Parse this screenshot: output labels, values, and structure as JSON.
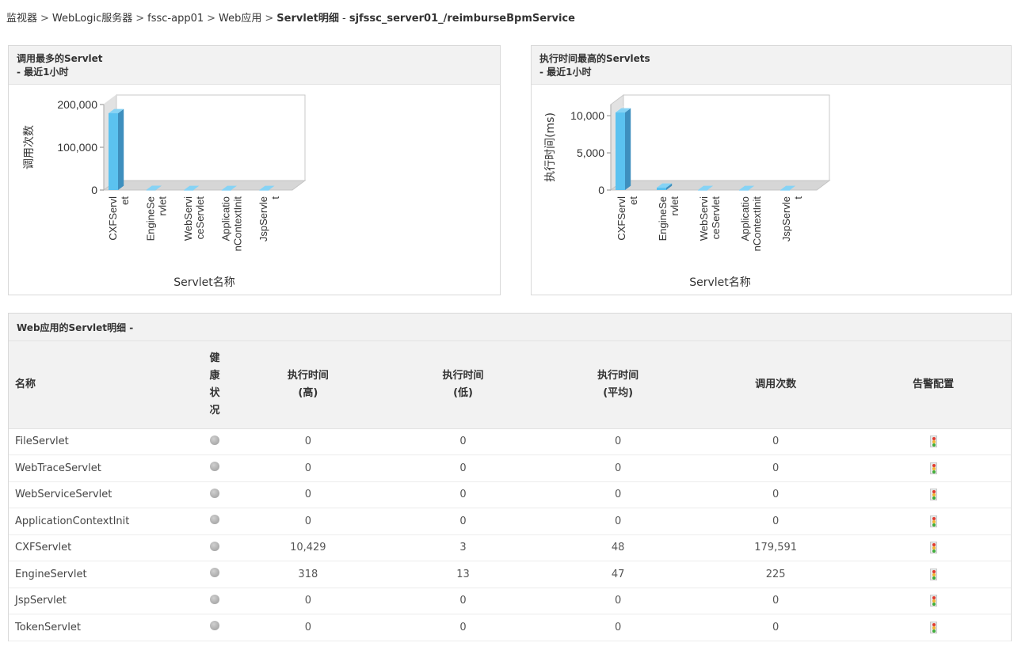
{
  "breadcrumb": {
    "items": [
      "监视器",
      "WebLogic服务器",
      "fssc-app01",
      "Web应用"
    ],
    "current_prefix": "Servlet明细",
    "current_sep": " - ",
    "current_name": "sjfssc_server01_/reimburseBpmService",
    "separator": ">"
  },
  "chart_left": {
    "header_title": "调用最多的Servlet",
    "header_sub": "- 最近1小时",
    "chart_data": {
      "type": "bar",
      "title": "调用最多的Servlet",
      "xlabel": "Servlet名称",
      "ylabel": "调用次数",
      "ylim": [
        0,
        200000
      ],
      "yticks": [
        "0",
        "100,000",
        "200,000"
      ],
      "categories": [
        "CXFServlet",
        "EngineServlet",
        "WebServiceServlet",
        "ApplicationContextInit",
        "JspServlet"
      ],
      "category_lines": [
        [
          "CXFServl",
          "et"
        ],
        [
          "EngineSe",
          "rvlet"
        ],
        [
          "WebServi",
          "ceServlet"
        ],
        [
          "Applicatio",
          "nContextInit"
        ],
        [
          "JspServle",
          "t"
        ]
      ],
      "values": [
        179591,
        225,
        0,
        0,
        0
      ],
      "color": "#5bc2f0"
    }
  },
  "chart_right": {
    "header_title": "执行时间最高的Servlets",
    "header_sub": "- 最近1小时",
    "chart_data": {
      "type": "bar",
      "title": "执行时间最高的Servlets",
      "xlabel": "Servlet名称",
      "ylabel": "执行时间(ms)",
      "ylim": [
        0,
        11500
      ],
      "yticks": [
        "0",
        "5,000",
        "10,000"
      ],
      "categories": [
        "CXFServlet",
        "EngineServlet",
        "WebServiceServlet",
        "ApplicationContextInit",
        "JspServlet"
      ],
      "category_lines": [
        [
          "CXFServl",
          "et"
        ],
        [
          "EngineSe",
          "rvlet"
        ],
        [
          "WebServi",
          "ceServlet"
        ],
        [
          "Applicatio",
          "nContextInit"
        ],
        [
          "JspServle",
          "t"
        ]
      ],
      "values": [
        10429,
        318,
        0,
        0,
        0
      ],
      "color": "#5bc2f0"
    }
  },
  "table": {
    "title": "Web应用的Servlet明细 -",
    "headers": {
      "name": "名称",
      "health": [
        "健",
        "康",
        "状",
        "况"
      ],
      "exec_high": [
        "执行时间",
        "(高)"
      ],
      "exec_low": [
        "执行时间",
        "(低)"
      ],
      "exec_avg": [
        "执行时间",
        "(平均)"
      ],
      "calls": "调用次数",
      "alarm": "告警配置"
    },
    "rows": [
      {
        "name": "FileServlet",
        "high": "0",
        "low": "0",
        "avg": "0",
        "calls": "0"
      },
      {
        "name": "WebTraceServlet",
        "high": "0",
        "low": "0",
        "avg": "0",
        "calls": "0"
      },
      {
        "name": "WebServiceServlet",
        "high": "0",
        "low": "0",
        "avg": "0",
        "calls": "0"
      },
      {
        "name": "ApplicationContextInit",
        "high": "0",
        "low": "0",
        "avg": "0",
        "calls": "0"
      },
      {
        "name": "CXFServlet",
        "high": "10,429",
        "low": "3",
        "avg": "48",
        "calls": "179,591"
      },
      {
        "name": "EngineServlet",
        "high": "318",
        "low": "13",
        "avg": "47",
        "calls": "225"
      },
      {
        "name": "JspServlet",
        "high": "0",
        "low": "0",
        "avg": "0",
        "calls": "0"
      },
      {
        "name": "TokenServlet",
        "high": "0",
        "low": "0",
        "avg": "0",
        "calls": "0"
      }
    ]
  }
}
